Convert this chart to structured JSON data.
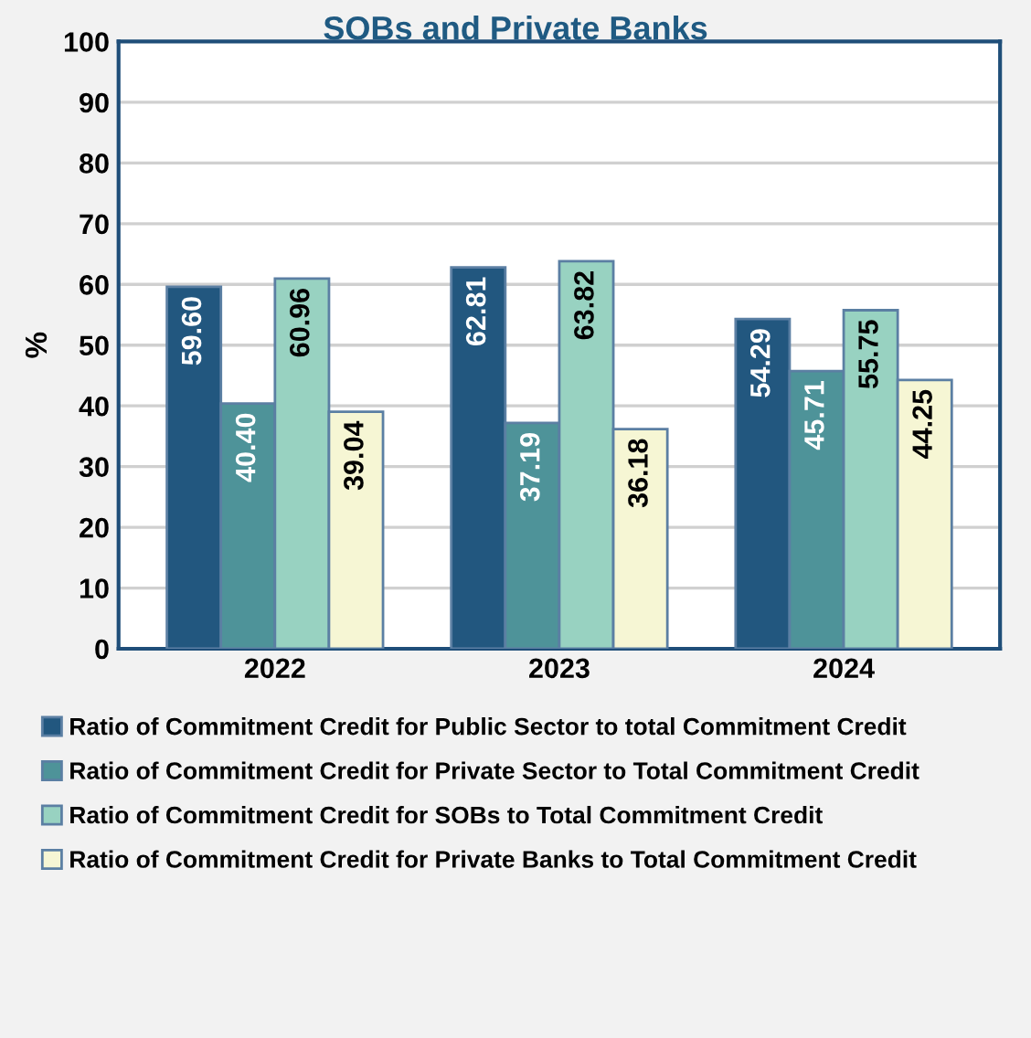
{
  "chart_data": {
    "type": "bar",
    "title": "SOBs and Private Banks",
    "ylabel": "%",
    "categories": [
      "2022",
      "2023",
      "2024"
    ],
    "series": [
      {
        "name": "Ratio of Commitment Credit for Public Sector to total Commitment Credit",
        "color": "#22577f",
        "values": [
          59.6,
          62.81,
          54.29
        ],
        "value_labels": [
          "59.60",
          "62.81",
          "54.29"
        ]
      },
      {
        "name": "Ratio of Commitment Credit for Private Sector to Total Commitment Credit",
        "color": "#4e9399",
        "values": [
          40.4,
          37.19,
          45.71
        ],
        "value_labels": [
          "40.40",
          "37.19",
          "45.71"
        ]
      },
      {
        "name": "Ratio of Commitment Credit for SOBs to Total Commitment Credit",
        "color": "#98d2c1",
        "values": [
          60.96,
          63.82,
          55.75
        ],
        "value_labels": [
          "60.96",
          "63.82",
          "55.75"
        ]
      },
      {
        "name": "Ratio of Commitment Credit for Private Banks to Total Commitment Credit",
        "color": "#f6f6d4",
        "values": [
          39.04,
          36.18,
          44.25
        ],
        "value_labels": [
          "39.04",
          "36.18",
          "44.25"
        ]
      }
    ],
    "ylim": [
      0,
      100
    ],
    "yticks": [
      0,
      10,
      20,
      30,
      40,
      50,
      60,
      70,
      80,
      90,
      100
    ],
    "grid": "y",
    "legend": "bottom"
  }
}
